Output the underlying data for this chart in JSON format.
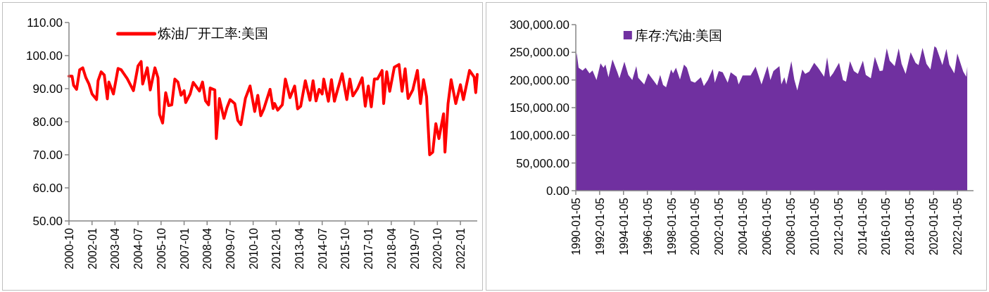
{
  "chart_data": [
    {
      "type": "line",
      "xlim": [
        "2000-10",
        "2022-12"
      ],
      "ylim": [
        50,
        110
      ],
      "xticks": [
        "2000-10",
        "2002-01",
        "2003-04",
        "2004-07",
        "2005-10",
        "2007-01",
        "2008-04",
        "2009-07",
        "2010-10",
        "2012-01",
        "2013-04",
        "2014-07",
        "2015-10",
        "2017-01",
        "2018-04",
        "2019-07",
        "2020-10",
        "2022-01"
      ],
      "yticks": [
        {
          "value": 50,
          "label": "50.00"
        },
        {
          "value": 60,
          "label": "60.00"
        },
        {
          "value": 70,
          "label": "70.00"
        },
        {
          "value": 80,
          "label": "80.00"
        },
        {
          "value": 90,
          "label": "90.00"
        },
        {
          "value": 100,
          "label": "100.00"
        },
        {
          "value": 110,
          "label": "110.00"
        }
      ],
      "legend": "top left",
      "grid": false,
      "marker": "none",
      "line_style": "solid",
      "series": [
        {
          "name": "炼油厂开工率:美国",
          "color": "#ff0000",
          "x": [
            "2000-10",
            "2000-12",
            "2001-01",
            "2001-03",
            "2001-05",
            "2001-07",
            "2001-09",
            "2001-11",
            "2002-01",
            "2002-04",
            "2002-05",
            "2002-07",
            "2002-09",
            "2002-11",
            "2002-12",
            "2003-03",
            "2003-06",
            "2003-08",
            "2003-12",
            "2004-04",
            "2004-07",
            "2004-09",
            "2004-10",
            "2005-01",
            "2005-03",
            "2005-06",
            "2005-08",
            "2005-09",
            "2005-11",
            "2006-01",
            "2006-03",
            "2006-05",
            "2006-07",
            "2006-09",
            "2006-11",
            "2007-01",
            "2007-02",
            "2007-05",
            "2007-07",
            "2007-11",
            "2008-01",
            "2008-03",
            "2008-05",
            "2008-06",
            "2008-09",
            "2008-10",
            "2008-12",
            "2009-03",
            "2009-05",
            "2009-07",
            "2009-10",
            "2009-12",
            "2010-02",
            "2010-05",
            "2010-08",
            "2010-11",
            "2011-01",
            "2011-03",
            "2011-05",
            "2011-09",
            "2011-11",
            "2011-12",
            "2012-02",
            "2012-05",
            "2012-07",
            "2012-10",
            "2013-01",
            "2013-03",
            "2013-05",
            "2013-08",
            "2013-11",
            "2014-01",
            "2014-03",
            "2014-05",
            "2014-07",
            "2014-08",
            "2014-11",
            "2015-01",
            "2015-03",
            "2015-05",
            "2015-08",
            "2015-11",
            "2016-01",
            "2016-03",
            "2016-06",
            "2016-09",
            "2016-11",
            "2017-01",
            "2017-03",
            "2017-05",
            "2017-07",
            "2017-10",
            "2017-11",
            "2018-01",
            "2018-03",
            "2018-06",
            "2018-09",
            "2018-11",
            "2019-01",
            "2019-03",
            "2019-06",
            "2019-09",
            "2019-11",
            "2020-01",
            "2020-03",
            "2020-05",
            "2020-07",
            "2020-09",
            "2020-11",
            "2021-02",
            "2021-03",
            "2021-05",
            "2021-07",
            "2021-10",
            "2022-01",
            "2022-03",
            "2022-05",
            "2022-07",
            "2022-10",
            "2022-11",
            "2022-12"
          ],
          "values": [
            93.8,
            93.8,
            91,
            89.8,
            95.7,
            96.3,
            93.3,
            91.4,
            88.4,
            86.7,
            92.4,
            95.1,
            94.1,
            86.9,
            92,
            88.4,
            96.1,
            95.7,
            93,
            89.4,
            96.9,
            98.2,
            91.4,
            96.3,
            89.6,
            96.3,
            93.3,
            82.2,
            79.6,
            88.8,
            84.9,
            85.1,
            92.9,
            92,
            88,
            89.4,
            85.8,
            88.4,
            91.9,
            89.3,
            92,
            86.3,
            85.1,
            90.2,
            89.6,
            74.9,
            87,
            81,
            84.3,
            86.7,
            85.5,
            80.4,
            79.1,
            87.1,
            90.8,
            83.1,
            88,
            81.8,
            83.9,
            89.8,
            84,
            85.5,
            83.5,
            85.1,
            92.9,
            87.3,
            90.8,
            83.9,
            84.7,
            92.4,
            86.5,
            92.4,
            86.3,
            89.8,
            88.4,
            92.9,
            86.2,
            92.7,
            86.2,
            89.6,
            94.5,
            86.7,
            92.9,
            87.8,
            90,
            93.3,
            84.7,
            90.8,
            84.5,
            92.9,
            92.9,
            95.5,
            85.5,
            95.1,
            89.2,
            96.5,
            97.3,
            89.2,
            96,
            87,
            89.6,
            95.5,
            85.5,
            92.7,
            87.6,
            70,
            70.8,
            79.4,
            74.9,
            82.4,
            70.8,
            85.5,
            92.7,
            85.5,
            91.2,
            86.7,
            91.1,
            95.5,
            93.5,
            88.8,
            94.3
          ]
        }
      ]
    },
    {
      "type": "area",
      "xlim": [
        "1990-01-05",
        "2023-05-12"
      ],
      "ylim": [
        0,
        300000
      ],
      "xticks": [
        "1990-01-05",
        "1992-01-05",
        "1994-01-05",
        "1996-01-05",
        "1998-01-05",
        "2000-01-05",
        "2002-01-05",
        "2004-01-05",
        "2006-01-05",
        "2008-01-05",
        "2010-01-05",
        "2012-01-05",
        "2014-01-05",
        "2016-01-05",
        "2018-01-05",
        "2020-01-05",
        "2022-01-05"
      ],
      "yticks": [
        {
          "value": 0,
          "label": "0.00"
        },
        {
          "value": 50000,
          "label": "50,000.00"
        },
        {
          "value": 100000,
          "label": "100,000.00"
        },
        {
          "value": 150000,
          "label": "150,000.00"
        },
        {
          "value": 200000,
          "label": "200,000.00"
        },
        {
          "value": 250000,
          "label": "250,000.00"
        },
        {
          "value": 300000,
          "label": "300,000.00"
        }
      ],
      "legend": "top left",
      "grid": false,
      "series": [
        {
          "name": "库存:汽油:美国",
          "color": "#7030a0",
          "x": [
            "1990-01-05",
            "1990-02",
            "1990-04",
            "1990-08",
            "1990-11",
            "1991-03",
            "1991-06",
            "1991-10",
            "1992-02",
            "1992-05",
            "1992-07",
            "1992-10",
            "1993-02",
            "1993-07",
            "1993-09",
            "1994-02",
            "1994-06",
            "1994-10",
            "1995-02",
            "1995-04",
            "1995-10",
            "1996-02",
            "1996-07",
            "1996-11",
            "1997-02",
            "1997-05",
            "1997-08",
            "1998-01",
            "1998-03",
            "1998-06",
            "1998-10",
            "1999-02",
            "1999-05",
            "1999-09",
            "2000-01",
            "2000-07",
            "2000-10",
            "2001-02",
            "2001-07",
            "2001-09",
            "2002-01",
            "2002-05",
            "2002-10",
            "2003-01",
            "2003-07",
            "2003-09",
            "2004-01",
            "2004-09",
            "2005-02",
            "2005-08",
            "2006-02",
            "2006-05",
            "2006-08",
            "2007-02",
            "2007-04",
            "2007-07",
            "2007-09",
            "2008-02",
            "2008-05",
            "2008-08",
            "2009-01",
            "2009-04",
            "2009-08",
            "2010-01",
            "2010-05",
            "2010-11",
            "2011-02",
            "2011-05",
            "2011-08",
            "2012-02",
            "2012-06",
            "2012-09",
            "2013-01",
            "2013-05",
            "2013-09",
            "2014-02",
            "2014-05",
            "2014-10",
            "2015-02",
            "2015-07",
            "2015-10",
            "2016-02",
            "2016-05",
            "2016-10",
            "2017-02",
            "2017-05",
            "2017-09",
            "2018-02",
            "2018-07",
            "2018-10",
            "2019-02",
            "2019-06",
            "2019-10",
            "2020-02",
            "2020-04",
            "2020-10",
            "2021-02",
            "2021-05",
            "2021-10",
            "2022-01",
            "2022-07",
            "2022-10",
            "2022-11"
          ],
          "values": [
            224000,
            249000,
            222000,
            217000,
            222000,
            212000,
            217000,
            200000,
            230000,
            222000,
            228000,
            205000,
            237000,
            214000,
            203000,
            233000,
            209000,
            200000,
            225000,
            204000,
            192000,
            212000,
            200000,
            190000,
            209000,
            191000,
            187000,
            219000,
            212000,
            222000,
            201000,
            228000,
            222000,
            198000,
            195000,
            205000,
            189000,
            200000,
            220000,
            195000,
            216000,
            214000,
            195000,
            214000,
            206000,
            192000,
            208000,
            208000,
            224000,
            192000,
            225000,
            200000,
            216000,
            225000,
            192000,
            205000,
            192000,
            234000,
            201000,
            181000,
            219000,
            211000,
            215000,
            231000,
            222000,
            206000,
            241000,
            205000,
            212000,
            231000,
            200000,
            197000,
            234000,
            216000,
            211000,
            235000,
            209000,
            203000,
            242000,
            216000,
            217000,
            257000,
            235000,
            225000,
            257000,
            229000,
            211000,
            250000,
            231000,
            227000,
            258000,
            229000,
            219000,
            261000,
            258000,
            227000,
            256000,
            228000,
            212000,
            248000,
            215000,
            206000,
            224000
          ]
        }
      ]
    }
  ]
}
